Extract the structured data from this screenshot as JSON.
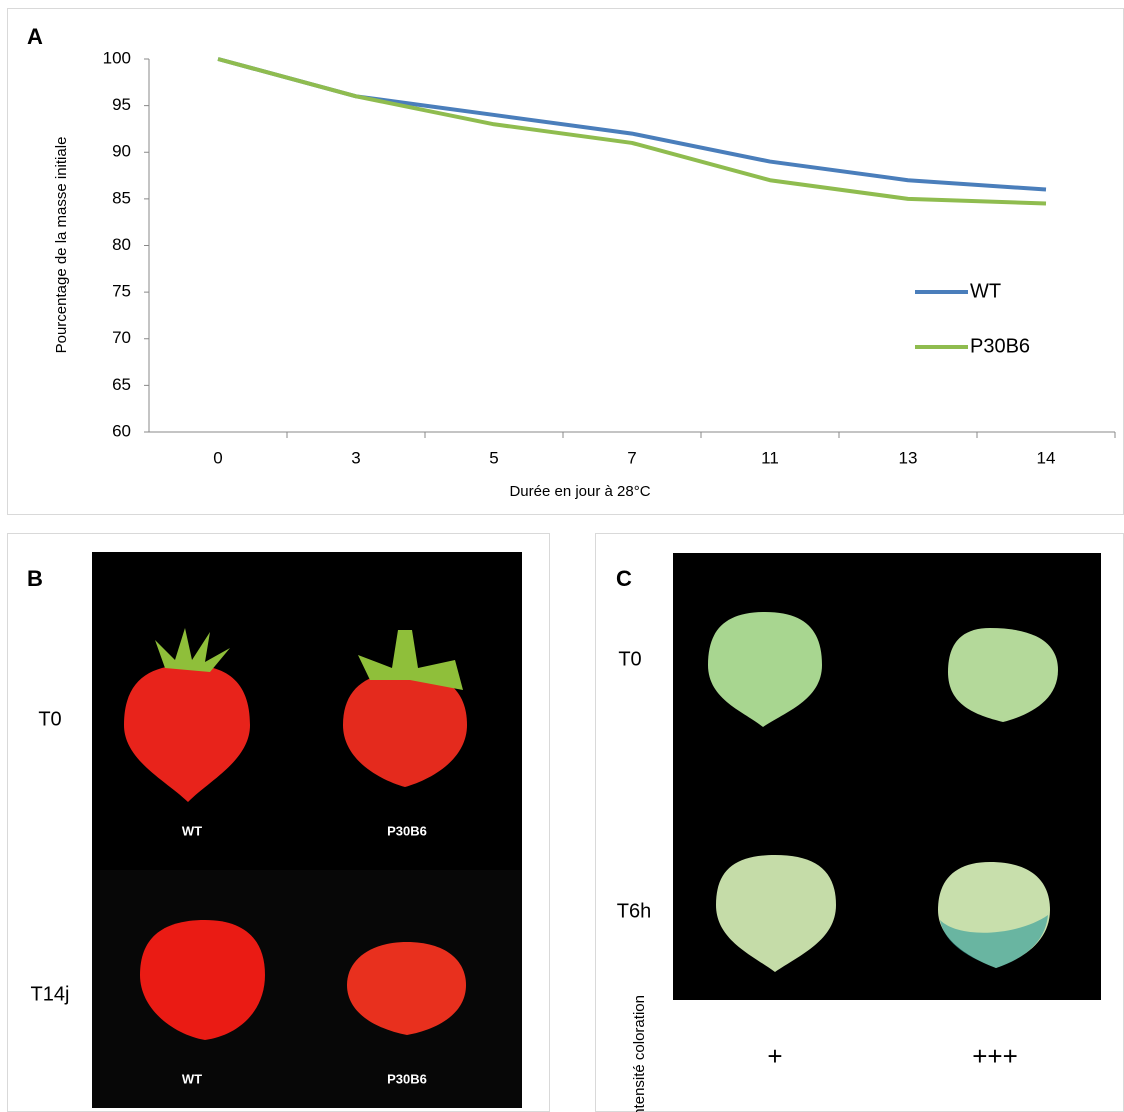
{
  "chart_data": {
    "type": "line",
    "x_label": "Durée en jour à 28°C",
    "y_label": "Pourcentage de la masse initiale",
    "panel_label": "A",
    "categories": [
      "0",
      "3",
      "5",
      "7",
      "11",
      "13",
      "14"
    ],
    "series": [
      {
        "name": "WT",
        "color": "#4a7ebb",
        "values": [
          100,
          96,
          94,
          92,
          89,
          87,
          86
        ]
      },
      {
        "name": "P30B6",
        "color": "#8fbc4f",
        "values": [
          100,
          96,
          93,
          91,
          87,
          85,
          84.5
        ]
      }
    ],
    "ylim": [
      60,
      100
    ],
    "yticks": [
      60,
      65,
      70,
      75,
      80,
      85,
      90,
      95,
      100
    ],
    "grid": false,
    "legend": "right"
  },
  "panel_b": {
    "label": "B",
    "rows": [
      "T0",
      "T14j"
    ],
    "captions_t0": [
      "WT",
      "P30B6"
    ],
    "captions_t14": [
      "WT",
      "P30B6"
    ]
  },
  "panel_c": {
    "label": "C",
    "rows": [
      "T0",
      "T6h"
    ],
    "scale_label": "Intensité coloration",
    "scores": [
      "+",
      "+++"
    ]
  }
}
